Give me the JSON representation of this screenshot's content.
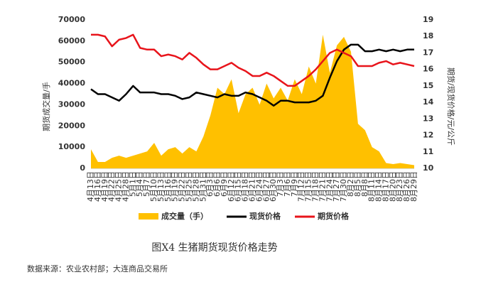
{
  "chart_data": {
    "type": "combo",
    "title": "图X4 生猪期货现货价格走势",
    "source": "数据来源：农业农村部；大连商品交易所",
    "y_label": "期货成交量/手",
    "y2_label": "期货/现货价格/元/公斤",
    "categories": [
      "4月13日",
      "4月16日",
      "4月19日",
      "4月22日",
      "4月25日",
      "4月28日",
      "5月1日",
      "5月4日",
      "5月7日",
      "5月10日",
      "5月13日",
      "5月16日",
      "5月19日",
      "5月22日",
      "5月25日",
      "5月28日",
      "5月31日",
      "6月3日",
      "6月6日",
      "6月9日",
      "6月12日",
      "6月15日",
      "6月18日",
      "6月21日",
      "6月24日",
      "6月27日",
      "6月30日",
      "7月3日",
      "7月6日",
      "7月9日",
      "7月12日",
      "7月15日",
      "7月18日",
      "7月21日",
      "7月24日",
      "7月27日",
      "7月30日",
      "8月2日",
      "8月5日",
      "8月8日",
      "8月11日",
      "8月14日",
      "8月17日",
      "8月20日",
      "8月23日",
      "8月26日",
      "8月29日"
    ],
    "series": [
      {
        "name": "成交量（手）",
        "type": "area",
        "color": "#ffc000",
        "axis": "y",
        "values": [
          9000,
          3000,
          3000,
          5000,
          6000,
          5000,
          6000,
          7000,
          8000,
          12000,
          6000,
          9000,
          10000,
          7000,
          10000,
          8000,
          15000,
          25000,
          38000,
          35000,
          42000,
          26000,
          35000,
          38000,
          30000,
          40000,
          33000,
          38000,
          32000,
          42000,
          35000,
          48000,
          40000,
          63000,
          45000,
          58000,
          62000,
          55000,
          21000,
          18000,
          10000,
          8000,
          2500,
          2000,
          2500,
          2000,
          1500
        ]
      },
      {
        "name": "现货价格",
        "type": "line",
        "color": "#000000",
        "axis": "y2",
        "values": [
          14.8,
          14.5,
          14.5,
          14.3,
          14.1,
          14.5,
          15.0,
          14.6,
          14.6,
          14.6,
          14.5,
          14.5,
          14.4,
          14.2,
          14.3,
          14.6,
          14.5,
          14.4,
          14.3,
          14.5,
          14.4,
          14.4,
          14.6,
          14.5,
          14.3,
          14.1,
          13.8,
          14.1,
          14.1,
          14.0,
          14.0,
          14.0,
          14.1,
          14.4,
          15.5,
          16.5,
          17.2,
          17.5,
          17.5,
          17.1,
          17.1,
          17.2,
          17.1,
          17.2,
          17.1,
          17.2,
          17.2
        ]
      },
      {
        "name": "期货价格",
        "type": "line",
        "color": "#e8141b",
        "axis": "y2",
        "values": [
          18.1,
          18.1,
          18.0,
          17.4,
          17.8,
          17.9,
          18.1,
          17.3,
          17.2,
          17.2,
          16.8,
          16.9,
          16.8,
          16.6,
          17.0,
          16.7,
          16.3,
          16.0,
          16.0,
          16.2,
          16.4,
          16.1,
          15.9,
          15.6,
          15.6,
          15.8,
          15.6,
          15.3,
          15.0,
          15.0,
          15.3,
          15.6,
          16.0,
          16.5,
          17.0,
          17.2,
          17.0,
          16.8,
          16.2,
          16.2,
          16.2,
          16.4,
          16.5,
          16.3,
          16.4,
          16.3,
          16.2
        ]
      }
    ],
    "ylim": [
      0,
      70000
    ],
    "yticks": [
      0,
      10000,
      20000,
      30000,
      40000,
      50000,
      60000,
      70000
    ],
    "y2lim": [
      10,
      19
    ],
    "y2ticks": [
      10,
      11,
      12,
      13,
      14,
      15,
      16,
      17,
      18,
      19
    ]
  }
}
